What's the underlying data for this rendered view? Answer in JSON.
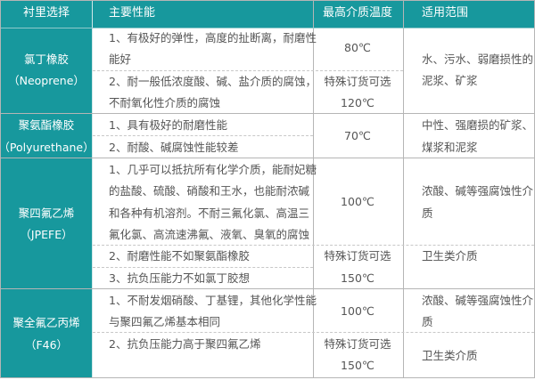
{
  "colors": {
    "header_bg": "#17989d",
    "text": "#555555",
    "border": "#b5b5b5"
  },
  "header": [
    "衬里选择",
    "主要性能",
    "最高介质温度",
    "适用范围"
  ],
  "groups": [
    {
      "name": "氯丁橡胶",
      "sub": "（Neoprene）",
      "perf": [
        [
          "1、有极好的弹性，高度的扯断离，耐磨性",
          "能好"
        ],
        [
          "2、耐一般低浓度酸、碱、盐介质的腐蚀，",
          "不耐氧化性介质的腐蚀"
        ]
      ],
      "temp": [
        "80℃",
        "特殊订货可选",
        "120℃"
      ],
      "range": [
        "水、污水、弱磨损性的",
        "泥浆、矿浆"
      ]
    },
    {
      "name": "聚氨酯橡胶",
      "sub": "（Polyurethane）",
      "perf": [
        [
          "1、具有极好的耐磨性能"
        ],
        [
          "2、耐酸、碱腐蚀性能较差"
        ]
      ],
      "temp": [
        "70℃"
      ],
      "range": [
        "中性、强磨损的矿浆、",
        "煤浆和泥浆"
      ]
    },
    {
      "name": "聚四氟乙烯",
      "sub": "（JPEFE）",
      "perf": [
        [
          "1、几乎可以抵抗所有化学介质，能耐妃糖",
          "的盐酸、硫酸、硝酸和王水，也能耐浓碱",
          "和各种有机溶剂。不耐三氟化氯、高温三",
          "氟化氯、高流速沸氟、液氧、臭氧的腐蚀"
        ],
        [
          "2、耐磨性能不如聚氨酯橡胶"
        ],
        [
          "3、抗负压能力不如氯丁胶想"
        ]
      ],
      "temp": [
        "100℃",
        "特殊订货可选",
        "150℃"
      ],
      "range": [
        "浓酸、碱等强腐蚀性介",
        "质",
        "卫生类介质"
      ]
    },
    {
      "name": "聚全氟乙丙烯",
      "sub": "（F46）",
      "perf": [
        [
          "1、不耐发烟硝酸、丁基锂，其他化学性能",
          "与聚四氟乙烯基本相同"
        ],
        [
          "2、抗负压能力高于聚四氟乙烯"
        ]
      ],
      "temp": [
        "100℃",
        "特殊订货可选",
        "150℃"
      ],
      "range": [
        "浓酸、碱等强腐蚀性介",
        "质",
        "卫生类介质"
      ]
    }
  ]
}
